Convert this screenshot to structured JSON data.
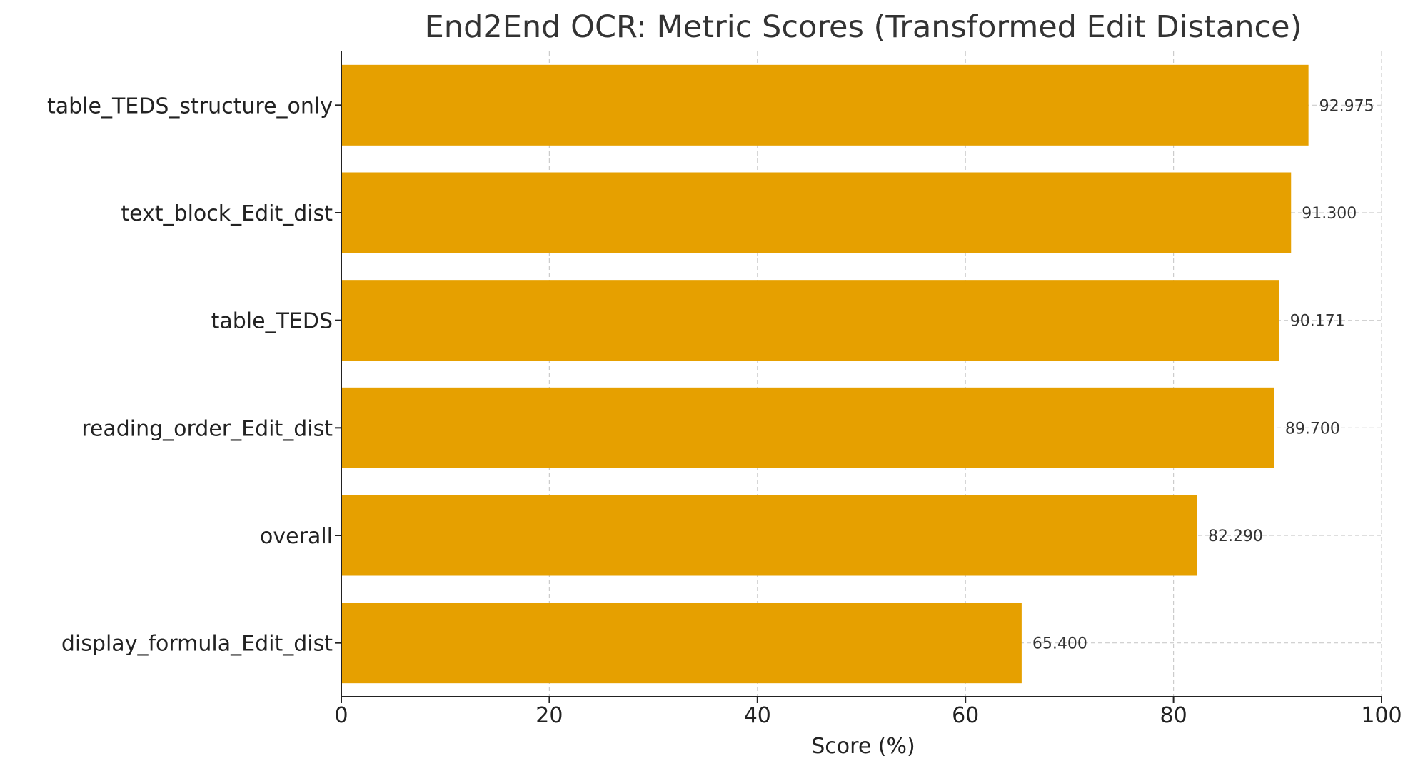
{
  "chart_data": {
    "type": "bar",
    "orientation": "horizontal",
    "title": "End2End OCR: Metric Scores (Transformed Edit Distance)",
    "xlabel": "Score (%)",
    "ylabel": "",
    "xlim": [
      0,
      100
    ],
    "xticks": [
      "0",
      "20",
      "40",
      "60",
      "80",
      "100"
    ],
    "grid": true,
    "bar_color": "#E6A000",
    "categories": [
      "table_TEDS_structure_only",
      "text_block_Edit_dist",
      "table_TEDS",
      "reading_order_Edit_dist",
      "overall",
      "display_formula_Edit_dist"
    ],
    "values": [
      92.975,
      91.3,
      90.171,
      89.7,
      82.29,
      65.4
    ],
    "value_labels": [
      "92.975",
      "91.300",
      "90.171",
      "89.700",
      "82.290",
      "65.400"
    ]
  }
}
